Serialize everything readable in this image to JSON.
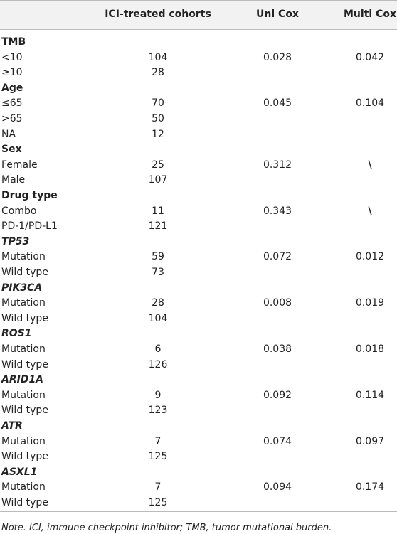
{
  "table": {
    "header": [
      "ICI-treated cohorts",
      "Uni Cox",
      "Multi Cox"
    ],
    "groups": [
      {
        "name": "TMB",
        "italic": false,
        "rows": [
          {
            "label": "<10",
            "count": 104,
            "uni": "0.028",
            "multi": "0.042"
          },
          {
            "label": "≥10",
            "count": 28
          }
        ]
      },
      {
        "name": "Age",
        "italic": false,
        "rows": [
          {
            "label": "≤65",
            "count": 70,
            "uni": "0.045",
            "multi": "0.104"
          },
          {
            "label": ">65",
            "count": 50
          },
          {
            "label": "NA",
            "count": 12
          }
        ]
      },
      {
        "name": "Sex",
        "italic": false,
        "rows": [
          {
            "label": "Female",
            "count": 25,
            "uni": "0.312",
            "multi": "\\"
          },
          {
            "label": "Male",
            "count": 107
          }
        ]
      },
      {
        "name": "Drug type",
        "italic": false,
        "rows": [
          {
            "label": "Combo",
            "count": 11,
            "uni": "0.343",
            "multi": "\\"
          },
          {
            "label": "PD-1/PD-L1",
            "count": 121
          }
        ]
      },
      {
        "name": "TP53",
        "italic": true,
        "rows": [
          {
            "label": "Mutation",
            "count": 59,
            "uni": "0.072",
            "multi": "0.012"
          },
          {
            "label": "Wild type",
            "count": 73
          }
        ]
      },
      {
        "name": "PIK3CA",
        "italic": true,
        "rows": [
          {
            "label": "Mutation",
            "count": 28,
            "uni": "0.008",
            "multi": "0.019"
          },
          {
            "label": "Wild type",
            "count": 104
          }
        ]
      },
      {
        "name": "ROS1",
        "italic": true,
        "rows": [
          {
            "label": "Mutation",
            "count": 6,
            "uni": "0.038",
            "multi": "0.018"
          },
          {
            "label": "Wild type",
            "count": 126
          }
        ]
      },
      {
        "name": "ARID1A",
        "italic": true,
        "rows": [
          {
            "label": "Mutation",
            "count": 9,
            "uni": "0.092",
            "multi": "0.114"
          },
          {
            "label": "Wild type",
            "count": 123
          }
        ]
      },
      {
        "name": "ATR",
        "italic": true,
        "rows": [
          {
            "label": "Mutation",
            "count": 7,
            "uni": "0.074",
            "multi": "0.097"
          },
          {
            "label": "Wild type",
            "count": 125
          }
        ]
      },
      {
        "name": "ASXL1",
        "italic": true,
        "rows": [
          {
            "label": "Mutation",
            "count": 7,
            "uni": "0.094",
            "multi": "0.174"
          },
          {
            "label": "Wild type",
            "count": 125
          }
        ]
      }
    ],
    "note": "Note. ICI, immune checkpoint inhibitor; TMB, tumor mutational burden."
  }
}
